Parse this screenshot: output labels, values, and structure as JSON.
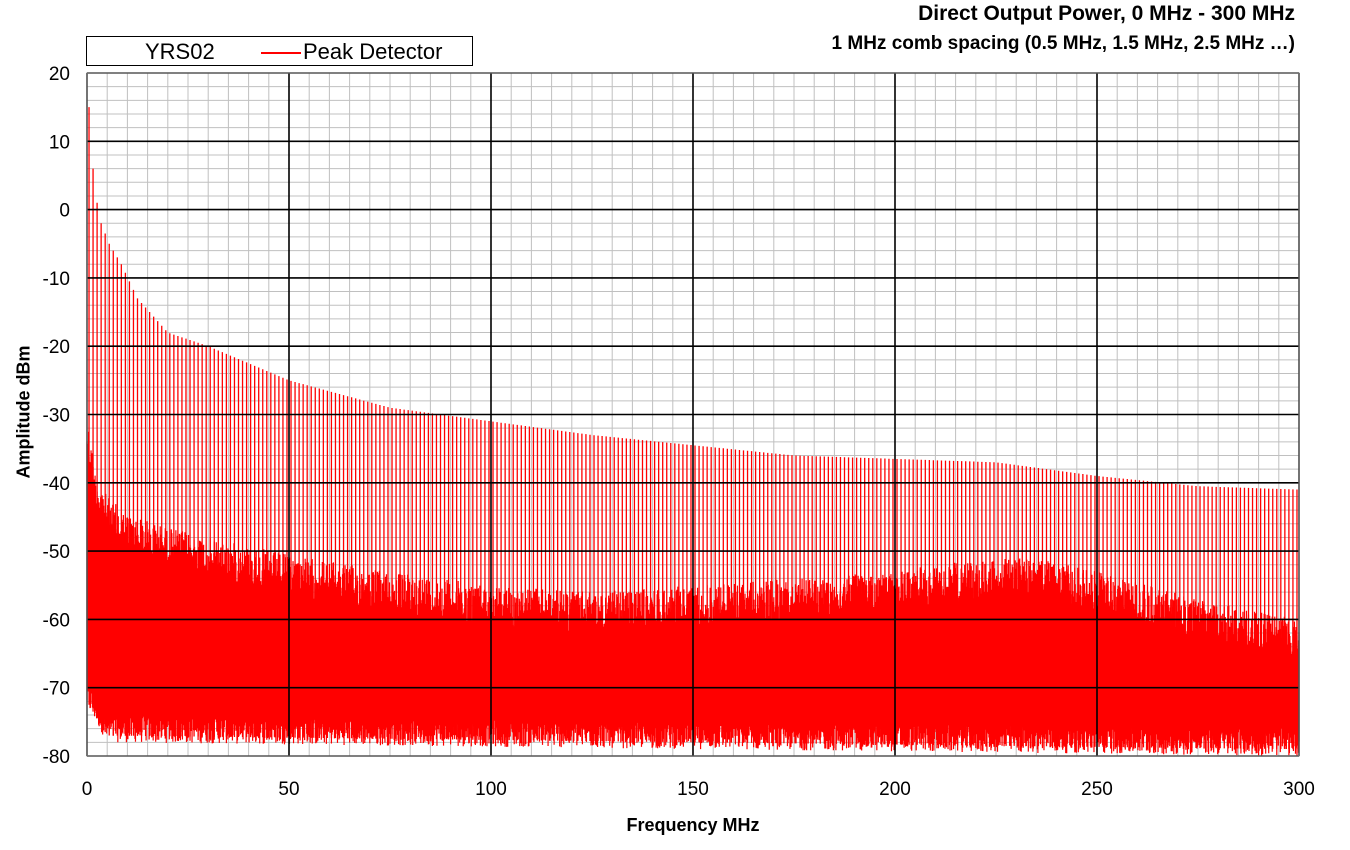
{
  "chart_data": {
    "type": "line",
    "title": "Direct Output Power, 0 MHz - 300 MHz",
    "subtitle": "1 MHz comb spacing (0.5 MHz, 1.5 MHz, 2.5 MHz …)",
    "xlabel": "Frequency MHz",
    "ylabel": "Amplitude dBm",
    "xlim": [
      0,
      300
    ],
    "ylim": [
      -80,
      20
    ],
    "xticks": [
      0,
      50,
      100,
      150,
      200,
      250,
      300
    ],
    "yticks": [
      20,
      10,
      0,
      -10,
      -20,
      -30,
      -40,
      -50,
      -60,
      -70,
      -80
    ],
    "x_tick_labels": [
      "0",
      "50",
      "100",
      "150",
      "200",
      "250",
      "300"
    ],
    "y_tick_labels": [
      "20",
      "10",
      "0",
      "-10",
      "-20",
      "-30",
      "-40",
      "-50",
      "-60",
      "-70",
      "-80"
    ],
    "grid": {
      "major": true,
      "minor": true,
      "major_color": "#000000",
      "minor_color": "#c0c0c0"
    },
    "legend": {
      "position": "top-left",
      "label": "YRS02",
      "entries": [
        "Peak Detector"
      ]
    },
    "series": [
      {
        "name": "Peak Detector",
        "color": "#ff0000",
        "comb_spacing_mhz": 1,
        "peak_envelope": {
          "x": [
            0.5,
            1.5,
            2.5,
            3.5,
            5.5,
            8.5,
            12.5,
            20,
            30,
            50,
            75,
            100,
            125,
            150,
            175,
            200,
            225,
            250,
            275,
            300
          ],
          "y": [
            15,
            6,
            1,
            -2,
            -5,
            -8,
            -13,
            -18,
            -20,
            -25,
            -29,
            -31,
            -33,
            -34.5,
            -36,
            -36.5,
            -37,
            -39,
            -40.5,
            -41
          ]
        },
        "noise_envelope": {
          "x": [
            0,
            2,
            5,
            10,
            20,
            30,
            50,
            75,
            100,
            125,
            150,
            175,
            200,
            210,
            225,
            235,
            250,
            275,
            300
          ],
          "y": [
            -30,
            -38,
            -42,
            -44.5,
            -46.5,
            -48,
            -50.5,
            -53,
            -55,
            -56,
            -55,
            -54,
            -53,
            -52,
            -51,
            -51,
            -53,
            -57,
            -60
          ]
        },
        "noise_floor": {
          "x": [
            0,
            5,
            300
          ],
          "y": [
            -72,
            -77,
            -79
          ]
        }
      }
    ]
  }
}
